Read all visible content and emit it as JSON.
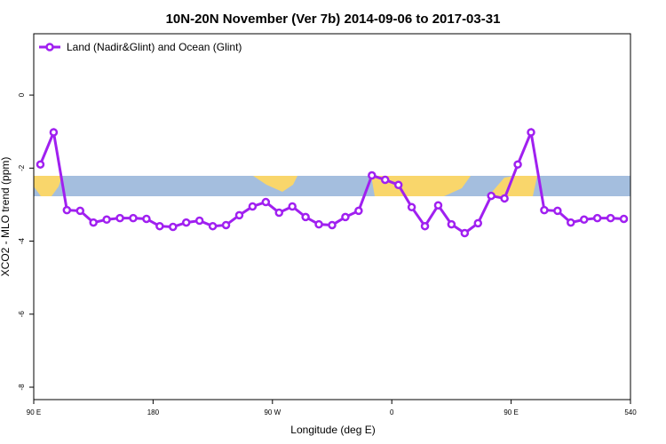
{
  "chart_data": {
    "type": "line",
    "title": "10N-20N November (Ver 7b)   2014-09-06 to 2017-03-31",
    "x_label": "Longitude (deg E)",
    "y_label": "XCO2 - MLO trend (ppm)",
    "x": [
      95,
      105,
      115,
      125,
      135,
      145,
      155,
      165,
      175,
      185,
      195,
      205,
      215,
      225,
      235,
      245,
      255,
      265,
      275,
      285,
      295,
      305,
      315,
      325,
      335,
      345,
      355,
      365,
      375,
      385,
      395,
      405,
      415,
      425,
      435,
      445,
      455,
      465,
      475,
      485,
      495,
      505,
      515,
      525,
      535
    ],
    "series": [
      {
        "name": "Land (Nadir&Glint) and Ocean (Glint)",
        "color": "#a020f0",
        "values": [
          -1.9,
          -1.02,
          -3.15,
          -3.17,
          -3.49,
          -3.41,
          -3.37,
          -3.37,
          -3.39,
          -3.59,
          -3.61,
          -3.49,
          -3.44,
          -3.59,
          -3.56,
          -3.29,
          -3.05,
          -2.93,
          -3.22,
          -3.05,
          -3.34,
          -3.54,
          -3.56,
          -3.34,
          -3.17,
          -2.2,
          -2.32,
          -2.46,
          -3.07,
          -3.59,
          -3.02,
          -3.54,
          -3.78,
          -3.51,
          -2.76,
          -2.83,
          -1.9,
          -1.02,
          -3.15,
          -3.17,
          -3.49,
          -3.41,
          -3.37,
          -3.37,
          -3.39
        ]
      }
    ],
    "xlim": [
      90,
      540
    ],
    "xticks": [
      {
        "value": 90,
        "label": "90 E"
      },
      180,
      {
        "value": 270,
        "label": "90 W"
      },
      {
        "value": 360,
        "label": "0"
      },
      {
        "value": 450,
        "label": "90 E"
      },
      540
    ],
    "ylim": [
      -8.34,
      1.68
    ],
    "yticks": [
      0,
      -2,
      -4,
      -6,
      -8
    ],
    "legend": "top-left"
  }
}
